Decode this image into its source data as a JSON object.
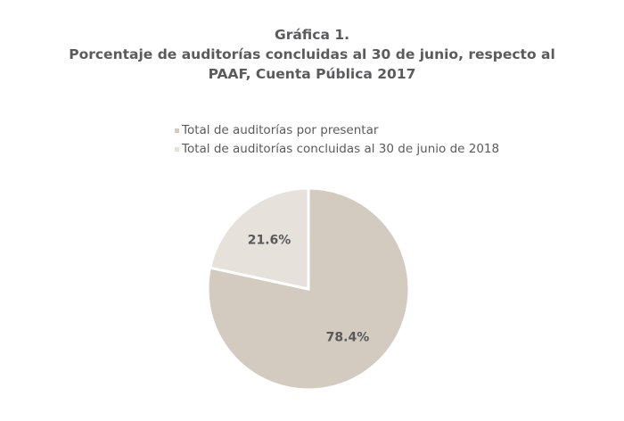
{
  "chart_data": {
    "type": "pie",
    "title_lines": [
      "Gráfica 1.",
      "Porcentaje de auditorías concluidas al 30 de junio, respecto al",
      "PAAF, Cuenta Pública 2017"
    ],
    "series": [
      {
        "name": "Total de auditorías por presentar",
        "value": 78.4,
        "label": "78.4%",
        "color": "#d3cbbf"
      },
      {
        "name": "Total de auditorías concluidas al 30 de junio de 2018",
        "value": 21.6,
        "label": "21.6%",
        "color": "#e6e1da"
      }
    ],
    "legend_position": "top",
    "start_angle_degrees": 0,
    "direction": "clockwise"
  }
}
